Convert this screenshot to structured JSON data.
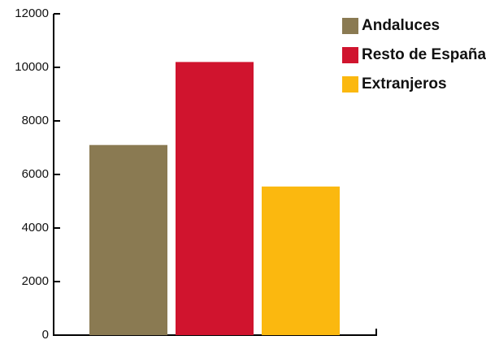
{
  "chart_data": {
    "type": "bar",
    "title": "",
    "xlabel": "",
    "ylabel": "",
    "ylim": [
      0,
      12000
    ],
    "yticks": [
      0,
      2000,
      4000,
      6000,
      8000,
      10000,
      12000
    ],
    "grid": false,
    "legend_position": "top-right",
    "series": [
      {
        "name": "Andaluces",
        "value": 7100,
        "color": "#8a7a52"
      },
      {
        "name": "Resto de España",
        "value": 10200,
        "color": "#d0142e"
      },
      {
        "name": "Extranjeros",
        "value": 5550,
        "color": "#fbb80f"
      }
    ]
  }
}
